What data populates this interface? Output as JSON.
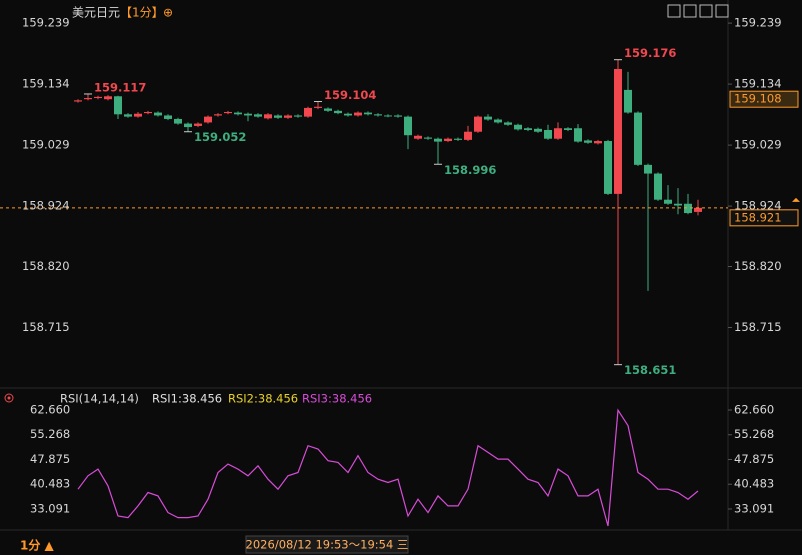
{
  "chart_data": {
    "type": "candlestick",
    "title": "美元日元",
    "period": "【1分】",
    "add_icon": "⊕",
    "open": [
      159.104,
      159.108,
      159.11,
      159.108,
      159.113,
      159.082,
      159.078,
      159.084,
      159.085,
      159.08,
      159.074,
      159.066,
      159.062,
      159.068,
      159.08,
      159.084,
      159.085,
      159.083,
      159.082,
      159.075,
      159.08,
      159.076,
      159.08,
      159.078,
      159.093,
      159.092,
      159.088,
      159.083,
      159.08,
      159.085,
      159.082,
      159.08,
      159.08,
      159.078,
      159.04,
      159.042,
      159.04,
      159.036,
      159.04,
      159.038,
      159.052,
      159.078,
      159.073,
      159.068,
      159.064,
      159.058,
      159.057,
      159.055,
      159.04,
      159.058,
      159.058,
      159.037,
      159.032,
      159.036,
      158.945,
      159.124,
      159.085,
      158.995,
      158.98,
      158.935,
      158.928,
      158.928,
      158.914
    ],
    "high": [
      159.108,
      159.117,
      159.114,
      159.115,
      159.114,
      159.084,
      159.086,
      159.088,
      159.087,
      159.082,
      159.076,
      159.068,
      159.068,
      159.08,
      159.084,
      159.088,
      159.087,
      159.085,
      159.084,
      159.084,
      159.082,
      159.082,
      159.082,
      159.095,
      159.104,
      159.094,
      159.09,
      159.085,
      159.087,
      159.087,
      159.084,
      159.082,
      159.082,
      159.08,
      159.047,
      159.044,
      159.042,
      159.042,
      159.042,
      159.062,
      159.08,
      159.082,
      159.075,
      159.07,
      159.066,
      159.06,
      159.059,
      159.064,
      159.068,
      159.06,
      159.065,
      159.039,
      159.038,
      159.038,
      159.176,
      159.155,
      159.087,
      158.997,
      158.982,
      158.96,
      158.955,
      158.945,
      158.935
    ],
    "low": [
      159.102,
      159.106,
      159.108,
      159.106,
      159.074,
      159.076,
      159.076,
      159.082,
      159.078,
      159.072,
      159.064,
      159.052,
      159.06,
      159.066,
      159.078,
      159.082,
      159.08,
      159.07,
      159.076,
      159.073,
      159.074,
      159.074,
      159.076,
      159.076,
      159.091,
      159.086,
      159.082,
      159.078,
      159.078,
      159.08,
      159.078,
      159.077,
      159.076,
      159.022,
      159.038,
      159.038,
      158.996,
      159.034,
      159.036,
      159.036,
      159.05,
      159.071,
      159.066,
      159.062,
      159.054,
      159.053,
      159.05,
      159.038,
      159.038,
      159.053,
      159.033,
      159.031,
      159.03,
      158.943,
      158.651,
      159.083,
      158.993,
      158.778,
      158.933,
      158.926,
      158.91,
      158.91,
      158.908
    ],
    "close": [
      159.106,
      159.11,
      159.112,
      159.113,
      159.082,
      159.078,
      159.083,
      159.086,
      159.08,
      159.074,
      159.066,
      159.06,
      159.066,
      159.078,
      159.082,
      159.086,
      159.082,
      159.08,
      159.078,
      159.082,
      159.076,
      159.08,
      159.078,
      159.093,
      159.095,
      159.088,
      159.084,
      159.08,
      159.085,
      159.082,
      159.08,
      159.079,
      159.078,
      159.046,
      159.045,
      159.04,
      159.035,
      159.04,
      159.038,
      159.052,
      159.078,
      159.073,
      159.068,
      159.064,
      159.056,
      159.055,
      159.052,
      159.04,
      159.058,
      159.055,
      159.035,
      159.033,
      159.036,
      158.945,
      159.16,
      159.085,
      158.995,
      158.98,
      158.935,
      158.928,
      158.925,
      158.912,
      158.921
    ],
    "up_color": "#f0484e",
    "down_color": "#3fae7f",
    "ylim": [
      158.616,
      159.265
    ],
    "yticks": [
      159.239,
      159.134,
      159.029,
      158.924,
      {
        "value": 158.82,
        "label": "158.820"
      },
      158.715
    ],
    "annotations": [
      159.117,
      159.052,
      159.104,
      158.996,
      159.176,
      158.651
    ],
    "reference_price": 159.108,
    "last_price": 158.921,
    "rsi": {
      "label": "RSI(14,14,14)",
      "legend": [
        "RSI1:38.456",
        "RSI2:38.456",
        "RSI3:38.456"
      ],
      "legend_colors": [
        "#e0e0e0",
        "#e8d12a",
        "#d84cd8"
      ],
      "color": "#d84cd8",
      "values": [
        39,
        43,
        45,
        40,
        31,
        30.5,
        34,
        38,
        37,
        32,
        30.5,
        30.5,
        31,
        36,
        44,
        46.5,
        45,
        43,
        46,
        42,
        39,
        43,
        44,
        52,
        51,
        47.5,
        47,
        44,
        49,
        44,
        42,
        41,
        42,
        31,
        36,
        32,
        37,
        34,
        34,
        39,
        52,
        50,
        48,
        48,
        45,
        42,
        41,
        37,
        45,
        43,
        37,
        37,
        39,
        28,
        62.6,
        58,
        44,
        42,
        39,
        39,
        38,
        36,
        38.456
      ],
      "ylim": [
        29.2,
        65.65
      ],
      "yticks": [
        {
          "value": 62.66,
          "label": "62.660"
        },
        55.268,
        47.875,
        40.483,
        33.091
      ]
    },
    "period_selector": "1分 ▲",
    "time_range": "2026/08/12 19:53～19:54 三"
  }
}
